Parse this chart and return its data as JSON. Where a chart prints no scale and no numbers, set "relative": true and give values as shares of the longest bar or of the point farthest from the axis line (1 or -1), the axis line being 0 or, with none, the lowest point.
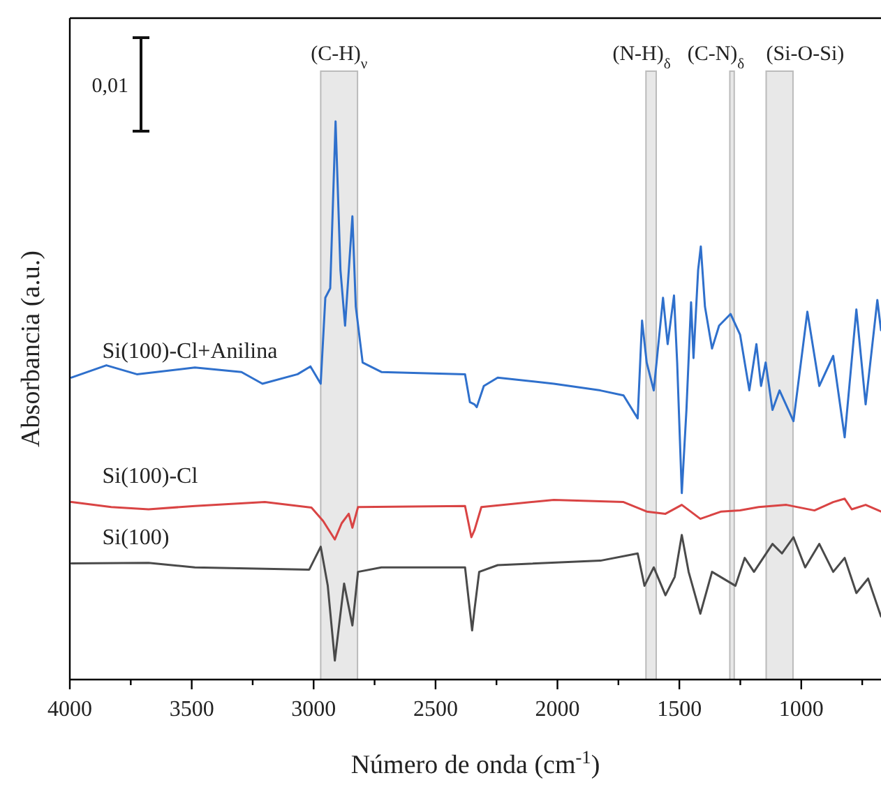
{
  "chart_data": {
    "type": "line",
    "relative": true,
    "xlabel": "Número de onda (cm$^{-1}$)",
    "ylabel": "Absorbancia (a.u.)",
    "xlim": [
      4000,
      673
    ],
    "xticks": [
      4000,
      {
        "value": 3750,
        "label": null
      },
      3500,
      {
        "value": 3250,
        "label": null
      },
      3000,
      {
        "value": 2750,
        "label": null
      },
      2500,
      {
        "value": 2250,
        "label": null
      },
      2000,
      {
        "value": 1750,
        "label": null
      },
      1500,
      {
        "value": 1250,
        "label": null
      },
      1000,
      {
        "value": 750,
        "label": null
      }
    ],
    "grid": false,
    "legend": false,
    "marker": "none",
    "line_style": "solid",
    "annotations": [
      "0,01"
    ],
    "bands": [
      {
        "axis": "x",
        "from": 2971,
        "to": 2820,
        "label": "(C-H)$_{ν}$",
        "color": "#e8e8e8"
      },
      {
        "axis": "x",
        "from": 1637,
        "to": 1595,
        "label": "(N-H)$_{δ}$",
        "color": "#e8e8e8"
      },
      {
        "axis": "x",
        "from": 1293,
        "to": 1275,
        "label": "(C-N)$_{δ}$",
        "color": "#e8e8e8"
      },
      {
        "axis": "x",
        "from": 1144,
        "to": 1034,
        "label": "(Si-O-Si)",
        "color": "#e8e8e8"
      }
    ],
    "series": [
      {
        "name": "Si(100)-Cl+Anilina",
        "color": "#2f70cc",
        "x": [
          3993,
          3850,
          3725,
          3487,
          3296,
          3210,
          3066,
          3013,
          2971,
          2952,
          2932,
          2910,
          2890,
          2871,
          2841,
          2827,
          2799,
          2722,
          2379,
          2359,
          2340,
          2331,
          2302,
          2245,
          2015,
          1824,
          1729,
          1671,
          1653,
          1634,
          1605,
          1567,
          1548,
          1522,
          1509,
          1490,
          1471,
          1452,
          1442,
          1423,
          1412,
          1395,
          1366,
          1337,
          1290,
          1251,
          1213,
          1184,
          1165,
          1146,
          1118,
          1089,
          1032,
          975,
          926,
          869,
          822,
          774,
          736,
          688,
          673
        ],
        "values": [
          0.541,
          0.563,
          0.547,
          0.559,
          0.551,
          0.53,
          0.547,
          0.561,
          0.53,
          0.684,
          0.701,
          1,
          0.734,
          0.634,
          0.83,
          0.668,
          0.568,
          0.551,
          0.547,
          0.497,
          0.493,
          0.488,
          0.526,
          0.541,
          0.53,
          0.518,
          0.509,
          0.468,
          0.643,
          0.568,
          0.518,
          0.684,
          0.601,
          0.688,
          0.568,
          0.334,
          0.483,
          0.676,
          0.576,
          0.734,
          0.776,
          0.668,
          0.593,
          0.634,
          0.655,
          0.618,
          0.518,
          0.601,
          0.526,
          0.568,
          0.483,
          0.518,
          0.463,
          0.659,
          0.526,
          0.58,
          0.434,
          0.663,
          0.493,
          0.68,
          0.626
        ]
      },
      {
        "name": "Si(100)-Cl",
        "color": "#d94444",
        "x": [
          3993,
          3830,
          3677,
          3487,
          3200,
          3009,
          2961,
          2913,
          2885,
          2856,
          2841,
          2818,
          2379,
          2353,
          2340,
          2312,
          2015,
          1729,
          1634,
          1557,
          1490,
          1414,
          1328,
          1251,
          1175,
          1061,
          946,
          869,
          822,
          793,
          736,
          673
        ],
        "values": [
          0.318,
          0.309,
          0.305,
          0.311,
          0.318,
          0.308,
          0.284,
          0.251,
          0.28,
          0.297,
          0.272,
          0.309,
          0.311,
          0.255,
          0.268,
          0.309,
          0.322,
          0.318,
          0.301,
          0.297,
          0.313,
          0.288,
          0.301,
          0.303,
          0.309,
          0.313,
          0.303,
          0.318,
          0.324,
          0.305,
          0.313,
          0.301
        ]
      },
      {
        "name": "Si(100)",
        "color": "#4a4a4a",
        "x": [
          3993,
          3677,
          3487,
          3018,
          2971,
          2942,
          2913,
          2875,
          2841,
          2818,
          2722,
          2379,
          2350,
          2340,
          2321,
          2245,
          1824,
          1671,
          1643,
          1605,
          1557,
          1519,
          1490,
          1462,
          1414,
          1366,
          1270,
          1232,
          1194,
          1118,
          1079,
          1032,
          984,
          926,
          869,
          822,
          774,
          726,
          673
        ],
        "values": [
          0.208,
          0.209,
          0.201,
          0.197,
          0.238,
          0.168,
          0.034,
          0.172,
          0.097,
          0.193,
          0.201,
          0.201,
          0.088,
          0.126,
          0.193,
          0.205,
          0.213,
          0.226,
          0.168,
          0.201,
          0.151,
          0.184,
          0.259,
          0.193,
          0.118,
          0.193,
          0.168,
          0.218,
          0.193,
          0.243,
          0.226,
          0.255,
          0.201,
          0.243,
          0.193,
          0.218,
          0.155,
          0.181,
          0.113
        ]
      }
    ]
  }
}
